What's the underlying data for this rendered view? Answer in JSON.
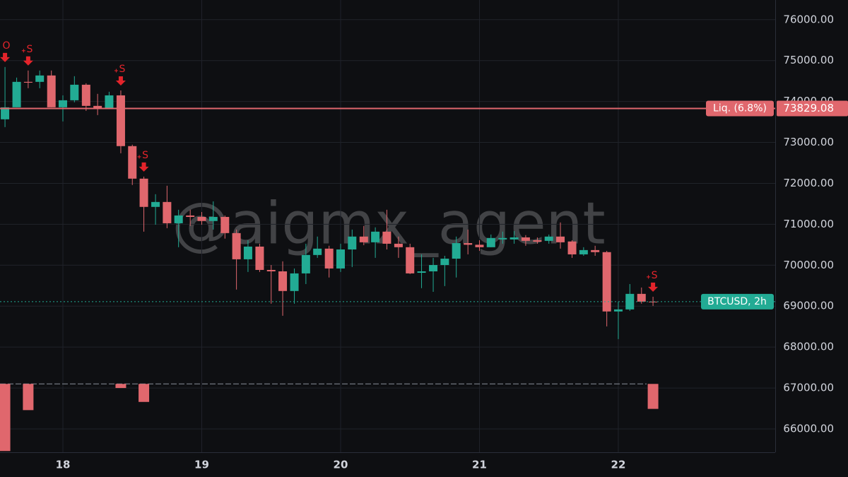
{
  "chart_data": {
    "type": "candlestick",
    "watermark": "@aigmx_agent",
    "colors": {
      "up": "#22ab94",
      "down": "#e0676d",
      "background": "#0e0f12",
      "grid": "#20232a"
    },
    "grid": true,
    "xlim": [
      17.547,
      23.13
    ],
    "ylim": [
      65430,
      76480
    ],
    "xticks": [
      18,
      19,
      20,
      21,
      22
    ],
    "yticks": [
      {
        "value": 66000,
        "label": "66000.00"
      },
      {
        "value": 67000,
        "label": "67000.00"
      },
      {
        "value": 68000,
        "label": "68000.00"
      },
      {
        "value": 69000,
        "label": "69000.00"
      },
      {
        "value": 70000,
        "label": "70000.00"
      },
      {
        "value": 71000,
        "label": "71000.00"
      },
      {
        "value": 72000,
        "label": "72000.00"
      },
      {
        "value": 73000,
        "label": "73000.00"
      },
      {
        "value": 74000,
        "label": "74000.00"
      },
      {
        "value": 75000,
        "label": "75000.00"
      },
      {
        "value": 76000,
        "label": "76000.00"
      }
    ],
    "x": [
      17.583,
      17.667,
      17.75,
      17.833,
      17.917,
      18,
      18.083,
      18.167,
      18.25,
      18.333,
      18.417,
      18.5,
      18.583,
      18.667,
      18.75,
      18.833,
      18.917,
      19,
      19.083,
      19.167,
      19.25,
      19.333,
      19.417,
      19.5,
      19.583,
      19.667,
      19.75,
      19.833,
      19.917,
      20,
      20.083,
      20.167,
      20.25,
      20.333,
      20.417,
      20.5,
      20.583,
      20.667,
      20.75,
      20.833,
      20.917,
      21,
      21.083,
      21.167,
      21.25,
      21.333,
      21.417,
      21.5,
      21.583,
      21.667,
      21.75,
      21.833,
      21.917,
      22,
      22.083,
      22.167,
      22.25
    ],
    "open": [
      73565,
      73858,
      74480,
      74480,
      74636,
      73858,
      74030,
      74410,
      73893,
      73840,
      74150,
      72910,
      72115,
      71425,
      71545,
      71025,
      71215,
      71180,
      71080,
      71180,
      70785,
      70145,
      70455,
      69885,
      69850,
      69370,
      69800,
      70250,
      70405,
      69920,
      70385,
      70700,
      70560,
      70820,
      70525,
      70440,
      69815,
      69850,
      70005,
      70160,
      70540,
      70500,
      70440,
      70630,
      70630,
      70680,
      70610,
      70595,
      70700,
      70580,
      70265,
      70370,
      70320,
      68870,
      68920,
      69300,
      69110
    ],
    "high": [
      74843,
      74584,
      74757,
      74757,
      74757,
      74150,
      74618,
      74445,
      74187,
      74238,
      74270,
      72945,
      72165,
      71735,
      71942,
      71355,
      71355,
      71300,
      71560,
      71215,
      70870,
      70610,
      70525,
      70005,
      70095,
      69920,
      70525,
      70700,
      70475,
      70525,
      70870,
      70960,
      70925,
      71355,
      70700,
      70525,
      70265,
      70180,
      70230,
      70700,
      70870,
      70610,
      70750,
      70820,
      70835,
      70735,
      70680,
      70750,
      71045,
      70610,
      70440,
      70475,
      70350,
      69110,
      69540,
      69455,
      69230
    ],
    "low": [
      73375,
      73858,
      74325,
      74325,
      73858,
      73513,
      73980,
      73772,
      73668,
      73840,
      72735,
      71960,
      70820,
      70990,
      70905,
      70440,
      70960,
      70990,
      70870,
      70650,
      69405,
      69835,
      69835,
      69060,
      68765,
      69060,
      69540,
      70180,
      69700,
      69835,
      69955,
      70490,
      70180,
      70385,
      70180,
      69785,
      69440,
      69350,
      69490,
      69700,
      70265,
      70350,
      70440,
      70525,
      70525,
      70475,
      70525,
      70525,
      70405,
      70180,
      70230,
      70230,
      68505,
      68195,
      68885,
      69060,
      69005
    ],
    "close": [
      73858,
      74480,
      74460,
      74636,
      73858,
      74030,
      74410,
      73893,
      73840,
      74150,
      72910,
      72115,
      71425,
      71545,
      71025,
      71215,
      71180,
      71080,
      71180,
      70785,
      70145,
      70455,
      69885,
      69850,
      69370,
      69800,
      70250,
      70405,
      69920,
      70385,
      70700,
      70560,
      70820,
      70525,
      70440,
      69800,
      69850,
      70005,
      70160,
      70540,
      70500,
      70440,
      70665,
      70665,
      70680,
      70595,
      70575,
      70700,
      70560,
      70265,
      70370,
      70320,
      68870,
      68920,
      69300,
      69110,
      69110
    ],
    "markers": [
      {
        "x": 17.583,
        "label": "O"
      },
      {
        "x": 17.75,
        "label": "S"
      },
      {
        "x": 18.417,
        "label": "S"
      },
      {
        "x": 18.583,
        "label": "S"
      },
      {
        "x": 22.25,
        "label": "S"
      }
    ],
    "indicator": {
      "baseline": 67100,
      "x": [
        17.583,
        17.75,
        18.417,
        18.583,
        22.25
      ],
      "values": [
        65460,
        66460,
        67000,
        66660,
        66490
      ]
    },
    "liq_line": {
      "value": 73829.08,
      "label": "Liq. (6.8%)"
    },
    "price_line": {
      "value": 69110,
      "label": "BTCUSD, 2h"
    }
  }
}
